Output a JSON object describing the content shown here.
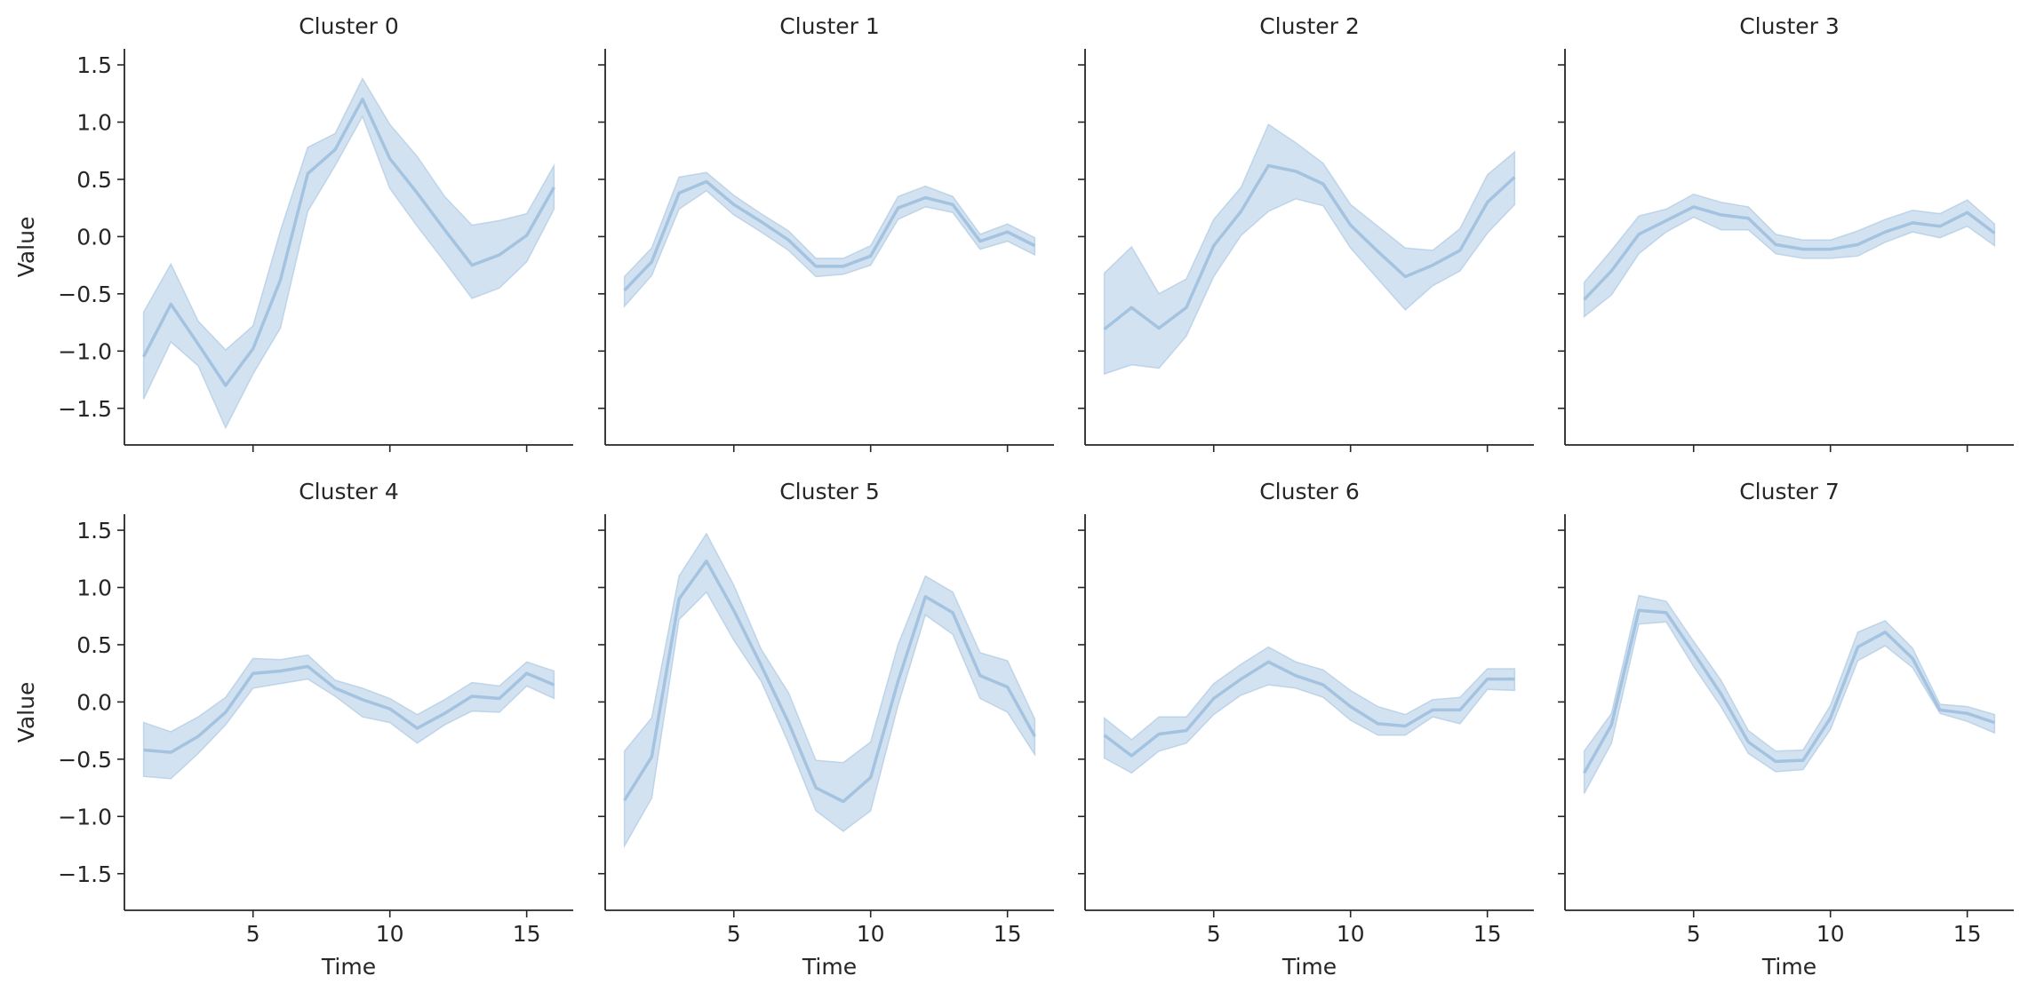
{
  "figure": {
    "rows": 2,
    "cols": 4,
    "sharex": true,
    "sharey": true
  },
  "colors": {
    "line": "#a3c3e0",
    "band": "#a3c3e0",
    "axis": "#262626",
    "background": "#ffffff"
  },
  "chart_data": [
    {
      "type": "line",
      "title": "Cluster 0",
      "xlabel": "",
      "ylabel": "Value",
      "x": [
        1,
        2,
        3,
        4,
        5,
        6,
        7,
        8,
        9,
        10,
        11,
        12,
        13,
        14,
        15,
        16
      ],
      "series": [
        {
          "values": [
            -1.05,
            -0.59,
            -0.94,
            -1.3,
            -0.98,
            -0.38,
            0.55,
            0.76,
            1.2,
            0.68,
            0.38,
            0.06,
            -0.25,
            -0.16,
            0.01,
            0.43
          ],
          "upper": [
            -0.66,
            -0.24,
            -0.74,
            -0.99,
            -0.78,
            0.05,
            0.78,
            0.9,
            1.38,
            0.98,
            0.7,
            0.35,
            0.1,
            0.14,
            0.2,
            0.62
          ],
          "lower": [
            -1.42,
            -0.92,
            -1.13,
            -1.67,
            -1.2,
            -0.8,
            0.22,
            0.62,
            1.05,
            0.42,
            0.09,
            -0.22,
            -0.54,
            -0.45,
            -0.22,
            0.24
          ]
        }
      ],
      "xlim": [
        0.3,
        16.7
      ],
      "ylim": [
        -1.82,
        1.64
      ],
      "xticks": [
        5,
        10,
        15
      ],
      "yticks": [
        -1.5,
        -1.0,
        -0.5,
        0.0,
        0.5,
        1.0,
        1.5
      ],
      "ytick_labels": [
        "−1.5",
        "−1.0",
        "−0.5",
        "0.0",
        "0.5",
        "1.0",
        "1.5"
      ],
      "xtick_labels": []
    },
    {
      "type": "line",
      "title": "Cluster 1",
      "xlabel": "",
      "ylabel": "",
      "x": [
        1,
        2,
        3,
        4,
        5,
        6,
        7,
        8,
        9,
        10,
        11,
        12,
        13,
        14,
        15,
        16
      ],
      "series": [
        {
          "values": [
            -0.47,
            -0.22,
            0.38,
            0.48,
            0.28,
            0.13,
            -0.03,
            -0.26,
            -0.26,
            -0.17,
            0.25,
            0.34,
            0.28,
            -0.04,
            0.04,
            -0.08
          ],
          "upper": [
            -0.35,
            -0.1,
            0.52,
            0.56,
            0.36,
            0.2,
            0.05,
            -0.19,
            -0.19,
            -0.08,
            0.35,
            0.44,
            0.35,
            0.02,
            0.11,
            -0.01
          ],
          "lower": [
            -0.61,
            -0.34,
            0.24,
            0.4,
            0.19,
            0.04,
            -0.12,
            -0.35,
            -0.33,
            -0.25,
            0.15,
            0.26,
            0.21,
            -0.11,
            -0.04,
            -0.16
          ]
        }
      ],
      "xlim": [
        0.3,
        16.7
      ],
      "ylim": [
        -1.82,
        1.64
      ],
      "xticks": [
        5,
        10,
        15
      ],
      "yticks": [
        -1.5,
        -1.0,
        -0.5,
        0.0,
        0.5,
        1.0,
        1.5
      ],
      "ytick_labels": [],
      "xtick_labels": []
    },
    {
      "type": "line",
      "title": "Cluster 2",
      "xlabel": "",
      "ylabel": "",
      "x": [
        1,
        2,
        3,
        4,
        5,
        6,
        7,
        8,
        9,
        10,
        11,
        12,
        13,
        14,
        15,
        16
      ],
      "series": [
        {
          "values": [
            -0.81,
            -0.62,
            -0.8,
            -0.62,
            -0.08,
            0.22,
            0.62,
            0.57,
            0.46,
            0.1,
            -0.13,
            -0.35,
            -0.25,
            -0.12,
            0.3,
            0.52
          ],
          "upper": [
            -0.32,
            -0.09,
            -0.5,
            -0.37,
            0.15,
            0.43,
            0.98,
            0.82,
            0.64,
            0.28,
            0.09,
            -0.1,
            -0.12,
            0.07,
            0.54,
            0.74
          ],
          "lower": [
            -1.2,
            -1.12,
            -1.15,
            -0.87,
            -0.35,
            0.01,
            0.22,
            0.33,
            0.27,
            -0.1,
            -0.37,
            -0.64,
            -0.43,
            -0.3,
            0.03,
            0.28
          ]
        }
      ],
      "xlim": [
        0.3,
        16.7
      ],
      "ylim": [
        -1.82,
        1.64
      ],
      "xticks": [
        5,
        10,
        15
      ],
      "yticks": [
        -1.5,
        -1.0,
        -0.5,
        0.0,
        0.5,
        1.0,
        1.5
      ],
      "ytick_labels": [],
      "xtick_labels": []
    },
    {
      "type": "line",
      "title": "Cluster 3",
      "xlabel": "",
      "ylabel": "",
      "x": [
        1,
        2,
        3,
        4,
        5,
        6,
        7,
        8,
        9,
        10,
        11,
        12,
        13,
        14,
        15,
        16
      ],
      "series": [
        {
          "values": [
            -0.55,
            -0.3,
            0.02,
            0.14,
            0.26,
            0.19,
            0.16,
            -0.07,
            -0.11,
            -0.11,
            -0.07,
            0.04,
            0.12,
            0.09,
            0.21,
            0.03
          ],
          "upper": [
            -0.4,
            -0.12,
            0.18,
            0.24,
            0.37,
            0.3,
            0.26,
            0.02,
            -0.03,
            -0.03,
            0.05,
            0.15,
            0.23,
            0.2,
            0.32,
            0.11
          ],
          "lower": [
            -0.7,
            -0.51,
            -0.15,
            0.04,
            0.17,
            0.06,
            0.06,
            -0.15,
            -0.19,
            -0.19,
            -0.17,
            -0.05,
            0.04,
            -0.01,
            0.09,
            -0.08
          ]
        }
      ],
      "xlim": [
        0.3,
        16.7
      ],
      "ylim": [
        -1.82,
        1.64
      ],
      "xticks": [
        5,
        10,
        15
      ],
      "yticks": [
        -1.5,
        -1.0,
        -0.5,
        0.0,
        0.5,
        1.0,
        1.5
      ],
      "ytick_labels": [],
      "xtick_labels": []
    },
    {
      "type": "line",
      "title": "Cluster 4",
      "xlabel": "Time",
      "ylabel": "Value",
      "x": [
        1,
        2,
        3,
        4,
        5,
        6,
        7,
        8,
        9,
        10,
        11,
        12,
        13,
        14,
        15,
        16
      ],
      "series": [
        {
          "values": [
            -0.42,
            -0.44,
            -0.3,
            -0.09,
            0.25,
            0.27,
            0.31,
            0.12,
            0.02,
            -0.06,
            -0.23,
            -0.1,
            0.05,
            0.03,
            0.25,
            0.15
          ],
          "upper": [
            -0.18,
            -0.26,
            -0.13,
            0.04,
            0.38,
            0.37,
            0.41,
            0.19,
            0.12,
            0.03,
            -0.11,
            0.02,
            0.17,
            0.14,
            0.35,
            0.27
          ],
          "lower": [
            -0.65,
            -0.67,
            -0.45,
            -0.2,
            0.12,
            0.16,
            0.2,
            0.05,
            -0.13,
            -0.18,
            -0.36,
            -0.2,
            -0.08,
            -0.09,
            0.14,
            0.03
          ]
        }
      ],
      "xlim": [
        0.3,
        16.7
      ],
      "ylim": [
        -1.82,
        1.64
      ],
      "xticks": [
        5,
        10,
        15
      ],
      "yticks": [
        -1.5,
        -1.0,
        -0.5,
        0.0,
        0.5,
        1.0,
        1.5
      ],
      "ytick_labels": [
        "−1.5",
        "−1.0",
        "−0.5",
        "0.0",
        "0.5",
        "1.0",
        "1.5"
      ],
      "xtick_labels": [
        "5",
        "10",
        "15"
      ]
    },
    {
      "type": "line",
      "title": "Cluster 5",
      "xlabel": "Time",
      "ylabel": "",
      "x": [
        1,
        2,
        3,
        4,
        5,
        6,
        7,
        8,
        9,
        10,
        11,
        12,
        13,
        14,
        15,
        16
      ],
      "series": [
        {
          "values": [
            -0.86,
            -0.48,
            0.9,
            1.23,
            0.8,
            0.32,
            -0.18,
            -0.75,
            -0.87,
            -0.66,
            0.18,
            0.92,
            0.78,
            0.23,
            0.13,
            -0.3
          ],
          "upper": [
            -0.43,
            -0.14,
            1.1,
            1.47,
            1.02,
            0.46,
            0.08,
            -0.51,
            -0.53,
            -0.35,
            0.5,
            1.1,
            0.96,
            0.43,
            0.36,
            -0.15
          ],
          "lower": [
            -1.26,
            -0.84,
            0.72,
            0.96,
            0.54,
            0.18,
            -0.36,
            -0.95,
            -1.13,
            -0.95,
            -0.03,
            0.76,
            0.59,
            0.03,
            -0.09,
            -0.46
          ]
        }
      ],
      "xlim": [
        0.3,
        16.7
      ],
      "ylim": [
        -1.82,
        1.64
      ],
      "xticks": [
        5,
        10,
        15
      ],
      "yticks": [
        -1.5,
        -1.0,
        -0.5,
        0.0,
        0.5,
        1.0,
        1.5
      ],
      "ytick_labels": [],
      "xtick_labels": [
        "5",
        "10",
        "15"
      ]
    },
    {
      "type": "line",
      "title": "Cluster 6",
      "xlabel": "Time",
      "ylabel": "",
      "x": [
        1,
        2,
        3,
        4,
        5,
        6,
        7,
        8,
        9,
        10,
        11,
        12,
        13,
        14,
        15,
        16
      ],
      "series": [
        {
          "values": [
            -0.29,
            -0.47,
            -0.28,
            -0.25,
            0.03,
            0.2,
            0.35,
            0.23,
            0.15,
            -0.04,
            -0.19,
            -0.21,
            -0.07,
            -0.07,
            0.2,
            0.2
          ],
          "upper": [
            -0.14,
            -0.33,
            -0.13,
            -0.13,
            0.16,
            0.33,
            0.48,
            0.35,
            0.28,
            0.1,
            -0.04,
            -0.11,
            0.02,
            0.04,
            0.29,
            0.29
          ],
          "lower": [
            -0.49,
            -0.62,
            -0.43,
            -0.36,
            -0.11,
            0.06,
            0.15,
            0.12,
            0.04,
            -0.16,
            -0.29,
            -0.29,
            -0.13,
            -0.19,
            0.11,
            0.1
          ]
        }
      ],
      "xlim": [
        0.3,
        16.7
      ],
      "ylim": [
        -1.82,
        1.64
      ],
      "xticks": [
        5,
        10,
        15
      ],
      "yticks": [
        -1.5,
        -1.0,
        -0.5,
        0.0,
        0.5,
        1.0,
        1.5
      ],
      "ytick_labels": [],
      "xtick_labels": [
        "5",
        "10",
        "15"
      ]
    },
    {
      "type": "line",
      "title": "Cluster 7",
      "xlabel": "Time",
      "ylabel": "",
      "x": [
        1,
        2,
        3,
        4,
        5,
        6,
        7,
        8,
        9,
        10,
        11,
        12,
        13,
        14,
        15,
        16
      ],
      "series": [
        {
          "values": [
            -0.62,
            -0.2,
            0.8,
            0.78,
            0.43,
            0.07,
            -0.35,
            -0.52,
            -0.51,
            -0.14,
            0.48,
            0.61,
            0.38,
            -0.07,
            -0.1,
            -0.18
          ],
          "upper": [
            -0.43,
            -0.1,
            0.93,
            0.88,
            0.53,
            0.19,
            -0.25,
            -0.43,
            -0.42,
            -0.03,
            0.61,
            0.71,
            0.47,
            -0.02,
            -0.04,
            -0.11
          ],
          "lower": [
            -0.8,
            -0.36,
            0.68,
            0.7,
            0.31,
            -0.04,
            -0.45,
            -0.61,
            -0.59,
            -0.24,
            0.36,
            0.49,
            0.3,
            -0.1,
            -0.17,
            -0.27
          ]
        }
      ],
      "xlim": [
        0.3,
        16.7
      ],
      "ylim": [
        -1.82,
        1.64
      ],
      "xticks": [
        5,
        10,
        15
      ],
      "yticks": [
        -1.5,
        -1.0,
        -0.5,
        0.0,
        0.5,
        1.0,
        1.5
      ],
      "ytick_labels": [],
      "xtick_labels": [
        "5",
        "10",
        "15"
      ]
    }
  ]
}
